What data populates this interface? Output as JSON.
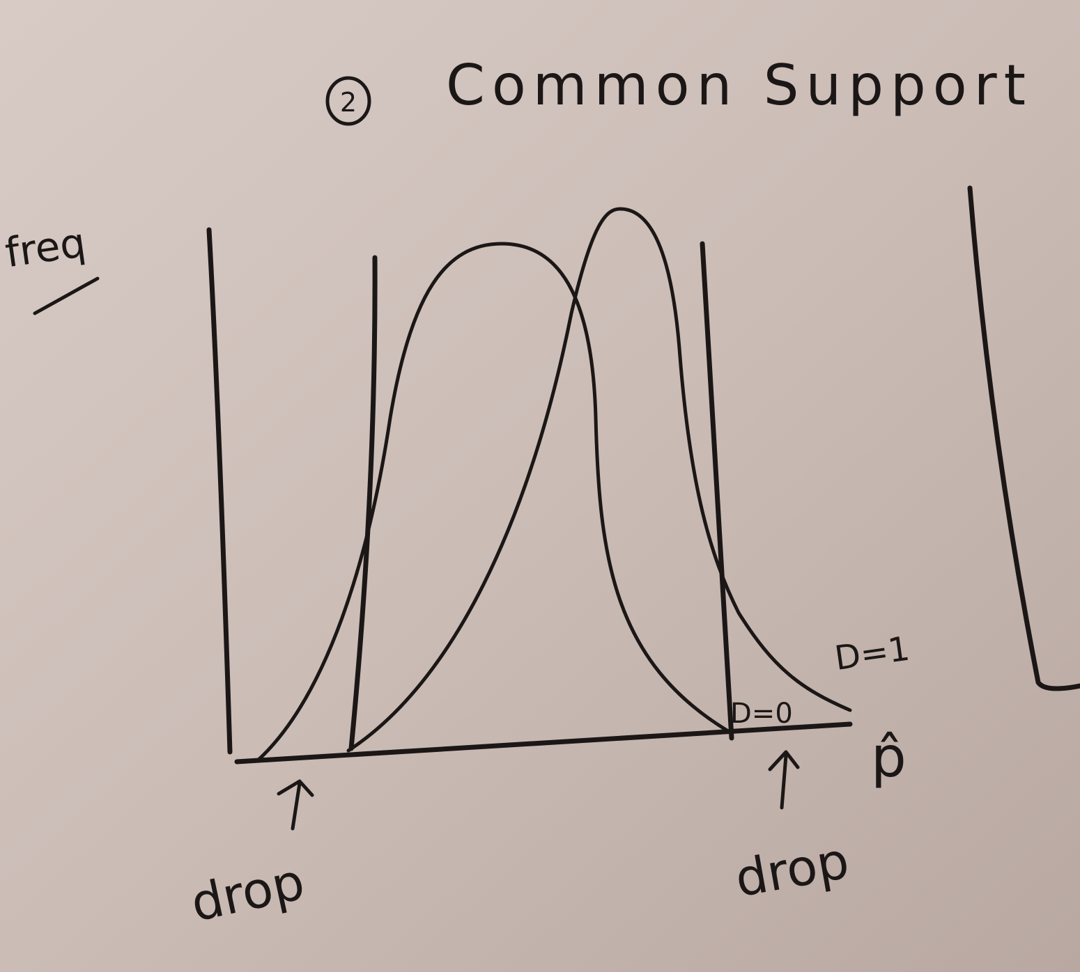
{
  "title": {
    "number": "2",
    "text": "Common Support"
  },
  "axis": {
    "ylabel": "freq",
    "xlabel": "p̂"
  },
  "annotations": {
    "drop_left": "drop",
    "drop_right": "drop",
    "d_zero": "D=0",
    "d_one": "D=1"
  },
  "colors": {
    "paper": "#c9bab4",
    "ink": "#1b1716"
  }
}
